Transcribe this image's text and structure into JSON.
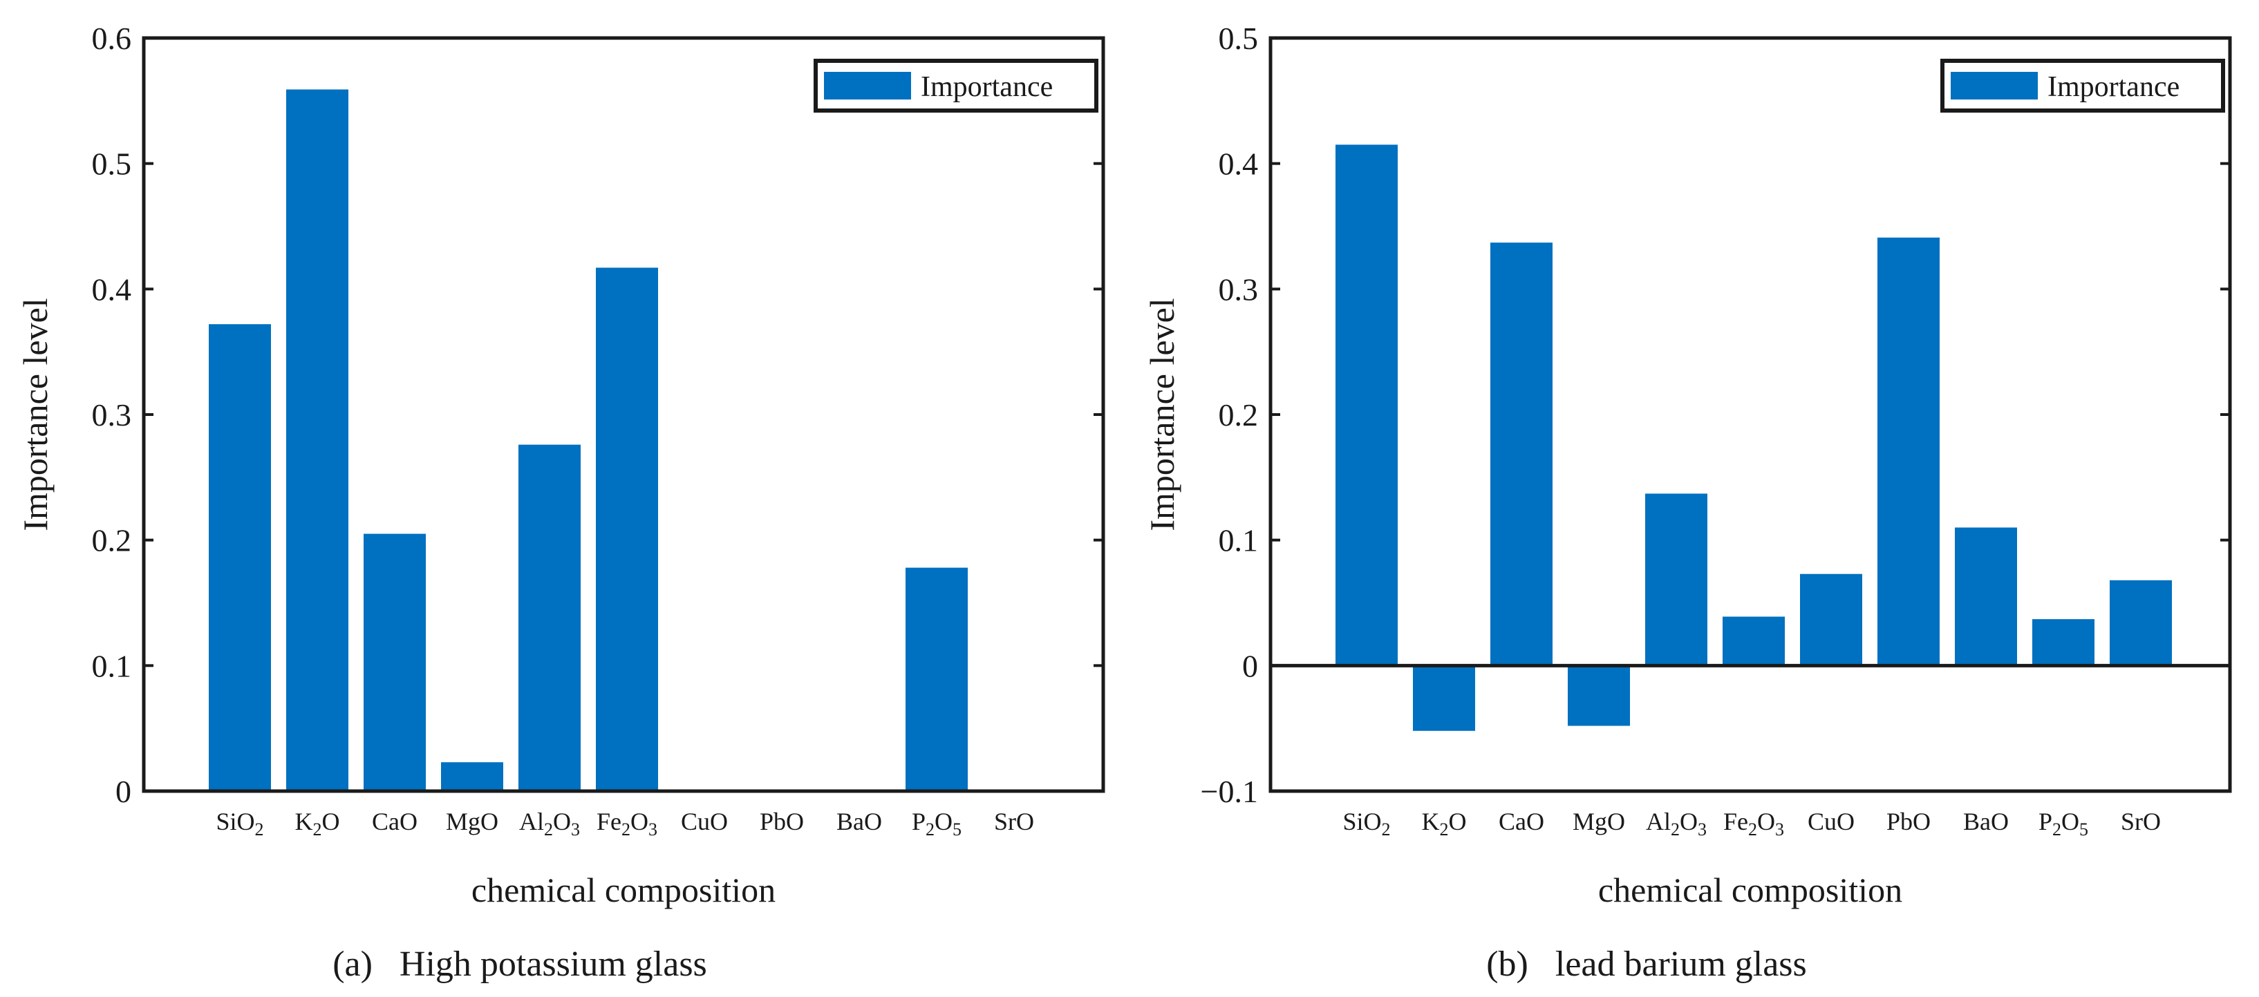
{
  "chart_data": [
    {
      "type": "bar",
      "panel_label": "(a)   High potassium glass",
      "title": "",
      "xlabel": "chemical composition",
      "ylabel": "Importance level",
      "ylim": [
        0,
        0.6
      ],
      "yticks": [
        0,
        0.1,
        0.2,
        0.3,
        0.4,
        0.5,
        0.6
      ],
      "ytick_labels": [
        "0",
        "0.1",
        "0.2",
        "0.3",
        "0.4",
        "0.5",
        "0.6"
      ],
      "categories": [
        {
          "base": "SiO",
          "sub": "2",
          "rest": "",
          "sub2": ""
        },
        {
          "base": "K",
          "sub": "2",
          "rest": "O",
          "sub2": ""
        },
        {
          "base": "CaO",
          "sub": "",
          "rest": "",
          "sub2": ""
        },
        {
          "base": "MgO",
          "sub": "",
          "rest": "",
          "sub2": ""
        },
        {
          "base": "Al",
          "sub": "2",
          "rest": "O",
          "sub2": "3"
        },
        {
          "base": "Fe",
          "sub": "2",
          "rest": "O",
          "sub2": "3"
        },
        {
          "base": "CuO",
          "sub": "",
          "rest": "",
          "sub2": ""
        },
        {
          "base": "PbO",
          "sub": "",
          "rest": "",
          "sub2": ""
        },
        {
          "base": "BaO",
          "sub": "",
          "rest": "",
          "sub2": ""
        },
        {
          "base": "P",
          "sub": "2",
          "rest": "O",
          "sub2": "5"
        },
        {
          "base": "SrO",
          "sub": "",
          "rest": "",
          "sub2": ""
        }
      ],
      "values": [
        0.372,
        0.559,
        0.205,
        0.023,
        0.276,
        0.417,
        0,
        0,
        0,
        0.178,
        0
      ],
      "legend": {
        "label": "Importance",
        "position": "top-right"
      },
      "bar_color": "#0070c0",
      "grid": false
    },
    {
      "type": "bar",
      "panel_label": "(b)   lead barium glass",
      "title": "",
      "xlabel": "chemical composition",
      "ylabel": "Importance level",
      "ylim": [
        -0.1,
        0.5
      ],
      "yticks": [
        -0.1,
        0,
        0.1,
        0.2,
        0.3,
        0.4,
        0.5
      ],
      "ytick_labels": [
        "−0.1",
        "0",
        "0.1",
        "0.2",
        "0.3",
        "0.4",
        "0.5"
      ],
      "categories": [
        {
          "base": "SiO",
          "sub": "2",
          "rest": "",
          "sub2": ""
        },
        {
          "base": "K",
          "sub": "2",
          "rest": "O",
          "sub2": ""
        },
        {
          "base": "CaO",
          "sub": "",
          "rest": "",
          "sub2": ""
        },
        {
          "base": "MgO",
          "sub": "",
          "rest": "",
          "sub2": ""
        },
        {
          "base": "Al",
          "sub": "2",
          "rest": "O",
          "sub2": "3"
        },
        {
          "base": "Fe",
          "sub": "2",
          "rest": "O",
          "sub2": "3"
        },
        {
          "base": "CuO",
          "sub": "",
          "rest": "",
          "sub2": ""
        },
        {
          "base": "PbO",
          "sub": "",
          "rest": "",
          "sub2": ""
        },
        {
          "base": "BaO",
          "sub": "",
          "rest": "",
          "sub2": ""
        },
        {
          "base": "P",
          "sub": "2",
          "rest": "O",
          "sub2": "5"
        },
        {
          "base": "SrO",
          "sub": "",
          "rest": "",
          "sub2": ""
        }
      ],
      "values": [
        0.415,
        -0.052,
        0.337,
        -0.048,
        0.137,
        0.039,
        0.073,
        0.341,
        0.11,
        0.037,
        0.068
      ],
      "legend": {
        "label": "Importance",
        "position": "top-right"
      },
      "bar_color": "#0070c0",
      "grid": false
    }
  ]
}
